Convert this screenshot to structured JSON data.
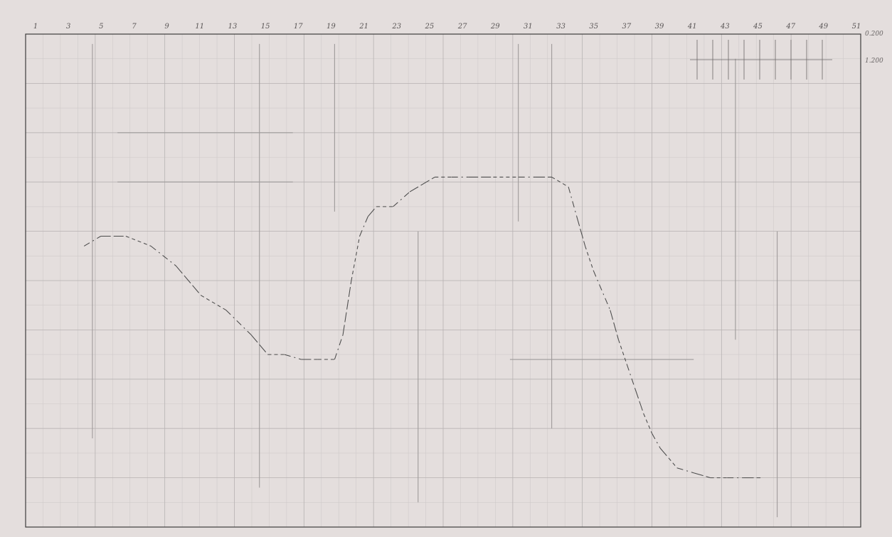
{
  "chart_data": {
    "type": "line",
    "title": "",
    "xlabel": "",
    "ylabel": "",
    "grid": true,
    "legend": "none",
    "x_tick_labels": [
      "1",
      "3",
      "5",
      "7",
      "9",
      "11",
      "13",
      "15",
      "17",
      "19",
      "21",
      "23",
      "25",
      "27",
      "29",
      "31",
      "33",
      "35",
      "37",
      "39",
      "41",
      "43",
      "45",
      "47",
      "49",
      "51"
    ],
    "y_tick_labels": [
      "0.200",
      "1.200"
    ],
    "xlim": [
      0,
      100
    ],
    "ylim": [
      0,
      100
    ],
    "series": [
      {
        "x": [
          7,
          9,
          12,
          15,
          18,
          21,
          24,
          27,
          29,
          31,
          33,
          35,
          37,
          38,
          39,
          40,
          41,
          42,
          44,
          46,
          49,
          51,
          53,
          56,
          59,
          61,
          63,
          65,
          66,
          67,
          68,
          70,
          71,
          72,
          73,
          74,
          75,
          76,
          77,
          78,
          80,
          82,
          84,
          86,
          88
        ],
        "y": [
          57,
          59,
          59,
          57,
          53,
          47,
          44,
          39,
          35,
          35,
          34,
          34,
          34,
          39,
          50,
          59,
          63,
          65,
          65,
          68,
          71,
          71,
          71,
          71,
          71,
          71,
          71,
          69,
          63,
          57,
          52,
          44,
          38,
          33,
          28,
          23,
          19,
          16,
          14,
          12,
          11,
          10,
          10,
          10,
          10
        ]
      }
    ]
  }
}
